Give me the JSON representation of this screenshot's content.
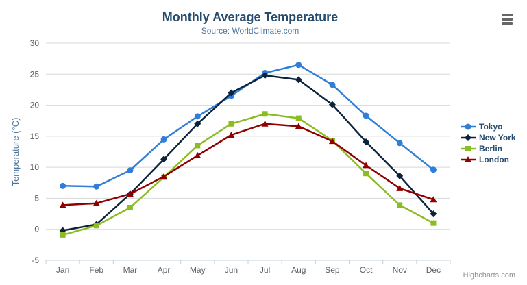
{
  "chart_data": {
    "type": "line",
    "title": "Monthly Average Temperature",
    "subtitle": "Source: WorldClimate.com",
    "xlabel": "",
    "ylabel": "Temperature (°C)",
    "categories": [
      "Jan",
      "Feb",
      "Mar",
      "Apr",
      "May",
      "Jun",
      "Jul",
      "Aug",
      "Sep",
      "Oct",
      "Nov",
      "Dec"
    ],
    "series": [
      {
        "name": "Tokyo",
        "marker": "circle",
        "color": "#2f7ed8",
        "values": [
          7.0,
          6.9,
          9.5,
          14.5,
          18.2,
          21.5,
          25.2,
          26.5,
          23.3,
          18.3,
          13.9,
          9.6
        ]
      },
      {
        "name": "New York",
        "marker": "diamond",
        "color": "#0d233a",
        "values": [
          -0.2,
          0.8,
          5.7,
          11.3,
          17.0,
          22.0,
          24.8,
          24.1,
          20.1,
          14.1,
          8.6,
          2.5
        ]
      },
      {
        "name": "Berlin",
        "marker": "square",
        "color": "#8bbc21",
        "values": [
          -0.9,
          0.6,
          3.5,
          8.4,
          13.5,
          17.0,
          18.6,
          17.9,
          14.3,
          9.0,
          3.9,
          1.0
        ]
      },
      {
        "name": "London",
        "marker": "triangle",
        "color": "#910000",
        "values": [
          3.9,
          4.2,
          5.7,
          8.5,
          11.9,
          15.2,
          17.0,
          16.6,
          14.2,
          10.3,
          6.6,
          4.8
        ]
      }
    ],
    "ylim": [
      -5,
      30
    ],
    "ytick_step": 5,
    "grid": true,
    "legend_position": "right",
    "colors": {
      "grid": "#d8d8d8",
      "axis_line": "#c0d0e0",
      "tick_label": "#606060",
      "axis_title": "#4d759e",
      "title": "#274b6d",
      "subtitle": "#4d759e",
      "legend_text": "#274b6d",
      "credit": "#909090",
      "menu_icon": "#666666"
    }
  },
  "header": {
    "menu_icon": "hamburger-icon"
  },
  "credits": {
    "label": "Highcharts.com"
  }
}
